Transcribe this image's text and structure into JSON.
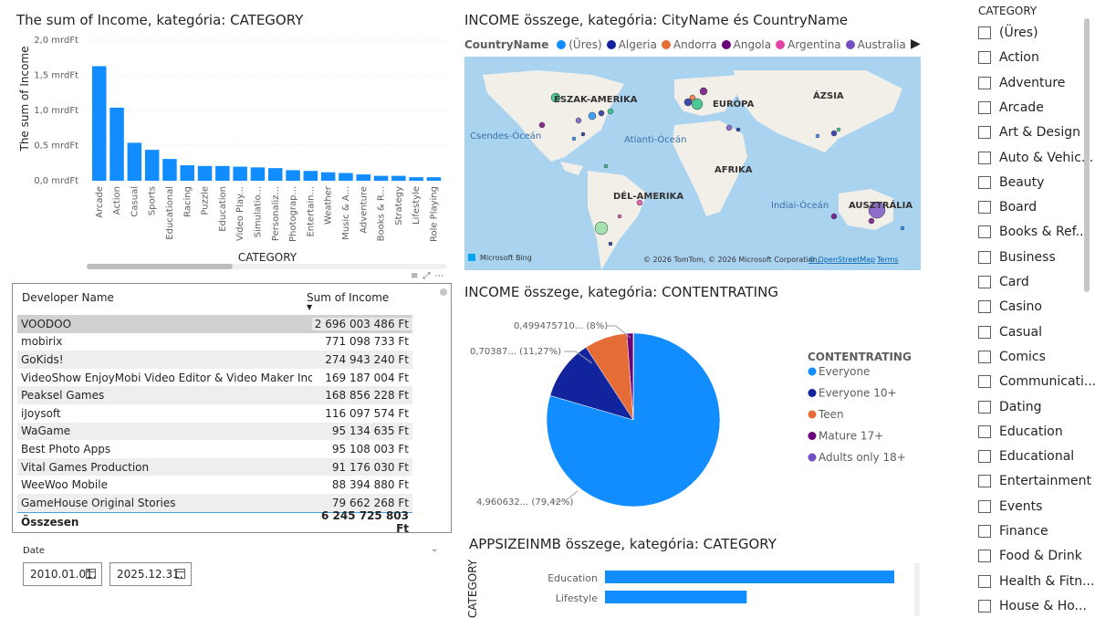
{
  "bar_chart": {
    "title": "The sum of Income, kategória: CATEGORY",
    "ylabel": "The sum of Income",
    "xlabel": "CATEGORY",
    "yticks": [
      "2,0 mrdFt",
      "1,5 mrdFt",
      "1,0 mrdFt",
      "0,5 mrdFt",
      "0,0 mrdFt"
    ],
    "color": "#118DFF"
  },
  "map": {
    "title": "INCOME összege, kategória: CityName és CountryName",
    "legend_title": "CountryName",
    "legend": [
      {
        "name": "(Üres)",
        "color": "#118DFF"
      },
      {
        "name": "Algeria",
        "color": "#12239E"
      },
      {
        "name": "Andorra",
        "color": "#E66C37"
      },
      {
        "name": "Angola",
        "color": "#6B007B"
      },
      {
        "name": "Argentina",
        "color": "#E044A7"
      },
      {
        "name": "Australia",
        "color": "#744EC2"
      }
    ],
    "labels": {
      "na": "ÉSZAK-AMERIKA",
      "eu": "EURÓPA",
      "asia": "ÁZSIA",
      "pacific": "Csendes-Óceán",
      "atlantic": "Atlanti-Óceán",
      "africa": "AFRIKA",
      "sa": "DÉL-AMERIKA",
      "indian": "Indiai-Óceán",
      "aus": "AUSZTRÁLIA"
    },
    "bing": "Microsoft Bing",
    "copyright": "© 2026 TomTom, © 2026 Microsoft Corporation,",
    "osm": "© OpenStreetMap",
    "terms": "Terms"
  },
  "table": {
    "col1": "Developer Name",
    "col2": "Sum of Income",
    "rows": [
      {
        "name": "VOODOO",
        "value": "2 696 003 486 Ft"
      },
      {
        "name": "mobirix",
        "value": "771 098 733 Ft"
      },
      {
        "name": "GoKids!",
        "value": "274 943 240 Ft"
      },
      {
        "name": "VideoShow EnjoyMobi Video Editor & Video Maker Inc",
        "value": "169 187 004 Ft"
      },
      {
        "name": "Peaksel Games",
        "value": "168 856 228 Ft"
      },
      {
        "name": "iJoysoft",
        "value": "116 097 574 Ft"
      },
      {
        "name": "WaGame",
        "value": "95 134 635 Ft"
      },
      {
        "name": "Best Photo Apps",
        "value": "95 108 003 Ft"
      },
      {
        "name": "Vital Games Production",
        "value": "91 176 030 Ft"
      },
      {
        "name": "WeeWoo Mobile",
        "value": "88 394 880 Ft"
      },
      {
        "name": "GameHouse Original Stories",
        "value": "79 662 268 Ft"
      }
    ],
    "total_label": "Összesen",
    "total_value": "6 245 725 803 Ft"
  },
  "date_slicer": {
    "label": "Date",
    "from": "2010.01.01.",
    "to": "2025.12.31."
  },
  "pie": {
    "title": "INCOME összege, kategória: CONTENTRATING",
    "legend_title": "CONTENTRATING",
    "labels": {
      "mature": "0,499475710... (8%)",
      "teen": "0,70387... (11,27%)",
      "everyone": "4,960632... (79,42%)"
    }
  },
  "appsize": {
    "title": "APPSIZEINMB összege, kategória: CATEGORY",
    "ylabel": "CATEGORY"
  },
  "slicer": {
    "title": "CATEGORY",
    "items": [
      "(Üres)",
      "Action",
      "Adventure",
      "Arcade",
      "Art & Design",
      "Auto & Vehic...",
      "Beauty",
      "Board",
      "Books & Ref...",
      "Business",
      "Card",
      "Casino",
      "Casual",
      "Comics",
      "Communicati...",
      "Dating",
      "Education",
      "Educational",
      "Entertainment",
      "Events",
      "Finance",
      "Food & Drink",
      "Health & Fitn...",
      "House & Ho..."
    ]
  },
  "chart_data": [
    {
      "type": "bar",
      "title": "The sum of Income, kategória: CATEGORY",
      "xlabel": "CATEGORY",
      "ylabel": "The sum of Income",
      "categories": [
        "Arcade",
        "Action",
        "Casual",
        "Sports",
        "Educational",
        "Racing",
        "Puzzle",
        "Education",
        "Video Play...",
        "Simulatio...",
        "Personaliz...",
        "Photograp...",
        "Entertain...",
        "Weather",
        "Music & A...",
        "Adventure",
        "Books & R...",
        "Strategy",
        "Lifestyle",
        "Role Playing"
      ],
      "values": [
        1.63,
        1.04,
        0.54,
        0.44,
        0.31,
        0.22,
        0.21,
        0.21,
        0.2,
        0.19,
        0.18,
        0.15,
        0.14,
        0.12,
        0.11,
        0.09,
        0.07,
        0.07,
        0.05,
        0.05
      ],
      "ylim": [
        0,
        2.0
      ],
      "unit": "mrdFt"
    },
    {
      "type": "pie",
      "title": "INCOME összege, kategória: CONTENTRATING",
      "categories": [
        "Everyone",
        "Everyone 10+",
        "Teen",
        "Mature 17+",
        "Adults only 18+"
      ],
      "values": [
        79.42,
        11.27,
        8.0,
        1.2,
        0.11
      ],
      "colors": [
        "#118DFF",
        "#12239E",
        "#E66C37",
        "#6B007B",
        "#744EC2"
      ],
      "legend": "right"
    },
    {
      "type": "bar",
      "orientation": "horizontal",
      "title": "APPSIZEINMB összege, kategória: CATEGORY",
      "ylabel": "CATEGORY",
      "categories": [
        "Education",
        "Lifestyle"
      ],
      "values": [
        100,
        49
      ],
      "color": "#118DFF"
    }
  ]
}
